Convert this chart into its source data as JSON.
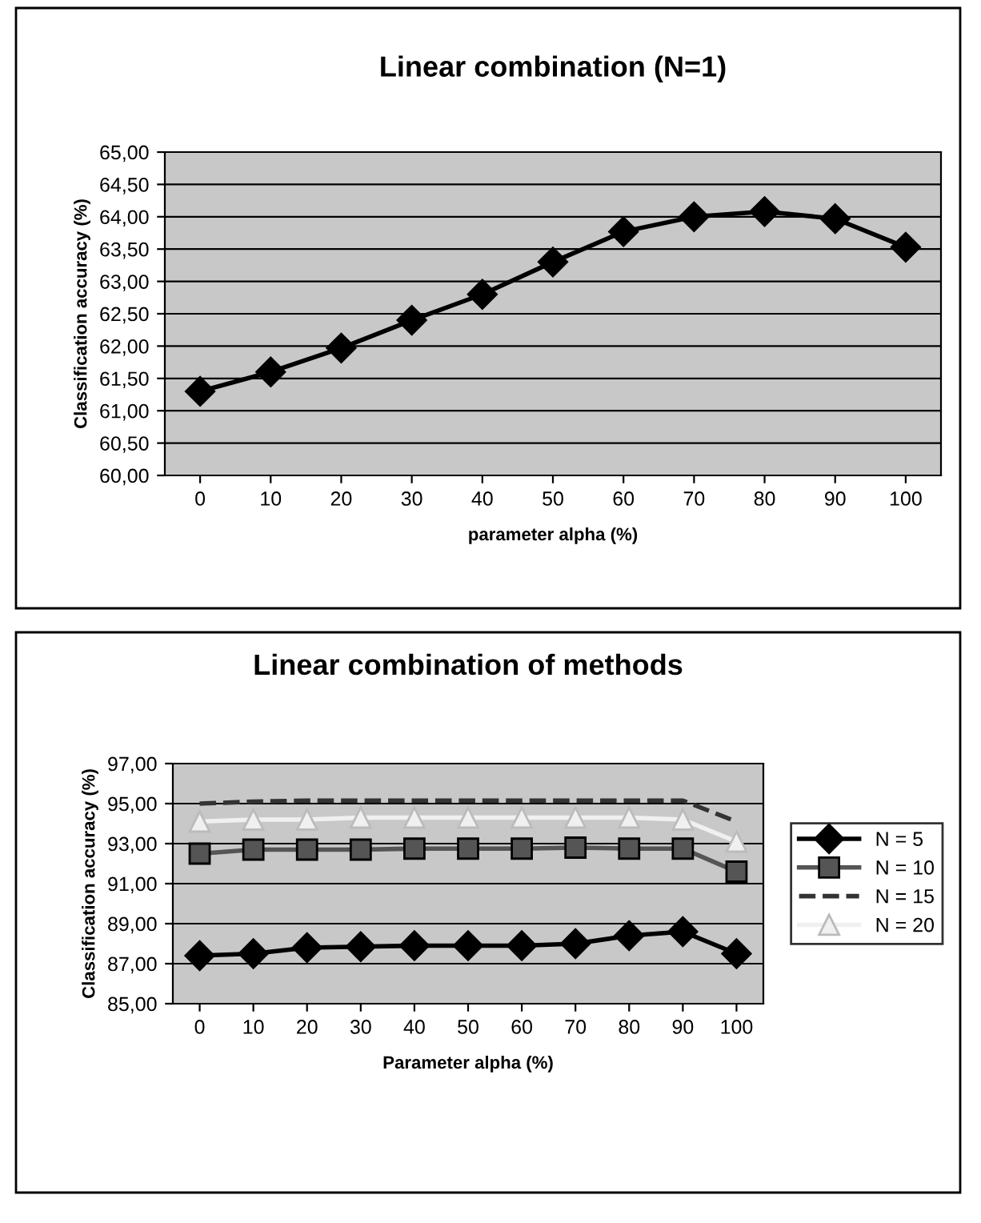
{
  "chart_data": [
    {
      "type": "line",
      "title": "Linear combination (N=1)",
      "xlabel": "parameter alpha (%)",
      "ylabel": "Classification accuracy (%)",
      "categories": [
        "0",
        "10",
        "20",
        "30",
        "40",
        "50",
        "60",
        "70",
        "80",
        "90",
        "100"
      ],
      "series": [
        {
          "color": "#000000",
          "marker": "diamond",
          "line_style": "solid",
          "values": [
            61.3,
            61.6,
            61.97,
            62.4,
            62.8,
            63.3,
            63.77,
            64.0,
            64.08,
            63.97,
            63.53
          ]
        }
      ],
      "ylim": [
        60,
        65
      ],
      "yticks": [
        {
          "value": 60,
          "label": "60,00"
        },
        {
          "value": 60.5,
          "label": "60,50"
        },
        {
          "value": 61,
          "label": "61,00"
        },
        {
          "value": 61.5,
          "label": "61,50"
        },
        {
          "value": 62,
          "label": "62,00"
        },
        {
          "value": 62.5,
          "label": "62,50"
        },
        {
          "value": 63,
          "label": "63,00"
        },
        {
          "value": 63.5,
          "label": "63,50"
        },
        {
          "value": 64,
          "label": "64,00"
        },
        {
          "value": 64.5,
          "label": "64,50"
        },
        {
          "value": 65,
          "label": "65,00"
        }
      ],
      "grid": "y"
    },
    {
      "type": "line",
      "title": "Linear combination of methods",
      "xlabel": "Parameter alpha (%)",
      "ylabel": "Classification accuracy (%)",
      "categories": [
        "0",
        "10",
        "20",
        "30",
        "40",
        "50",
        "60",
        "70",
        "80",
        "90",
        "100"
      ],
      "series": [
        {
          "name": "N = 5",
          "color": "#000000",
          "marker": "diamond",
          "line_style": "solid",
          "values": [
            87.4,
            87.5,
            87.8,
            87.85,
            87.9,
            87.9,
            87.9,
            88.0,
            88.4,
            88.6,
            87.5
          ]
        },
        {
          "name": "N = 10",
          "color": "#555555",
          "marker": "square",
          "line_style": "solid",
          "values": [
            92.5,
            92.7,
            92.7,
            92.7,
            92.75,
            92.75,
            92.75,
            92.8,
            92.75,
            92.75,
            91.6
          ]
        },
        {
          "name": "N = 15",
          "color": "#333333",
          "marker": "none",
          "line_style": "dashed",
          "values": [
            95.0,
            95.1,
            95.15,
            95.15,
            95.15,
            95.15,
            95.15,
            95.15,
            95.15,
            95.15,
            94.1
          ]
        },
        {
          "name": "N = 20",
          "color": "#f0f0f0",
          "marker": "triangle",
          "line_style": "solid",
          "values": [
            94.1,
            94.2,
            94.2,
            94.3,
            94.3,
            94.3,
            94.3,
            94.3,
            94.3,
            94.2,
            93.1
          ]
        }
      ],
      "ylim": [
        85,
        97
      ],
      "yticks": [
        {
          "value": 85,
          "label": "85,00"
        },
        {
          "value": 87,
          "label": "87,00"
        },
        {
          "value": 89,
          "label": "89,00"
        },
        {
          "value": 91,
          "label": "91,00"
        },
        {
          "value": 93,
          "label": "93,00"
        },
        {
          "value": 95,
          "label": "95,00"
        },
        {
          "value": 97,
          "label": "97,00"
        }
      ],
      "grid": "y",
      "legend": "right"
    }
  ]
}
